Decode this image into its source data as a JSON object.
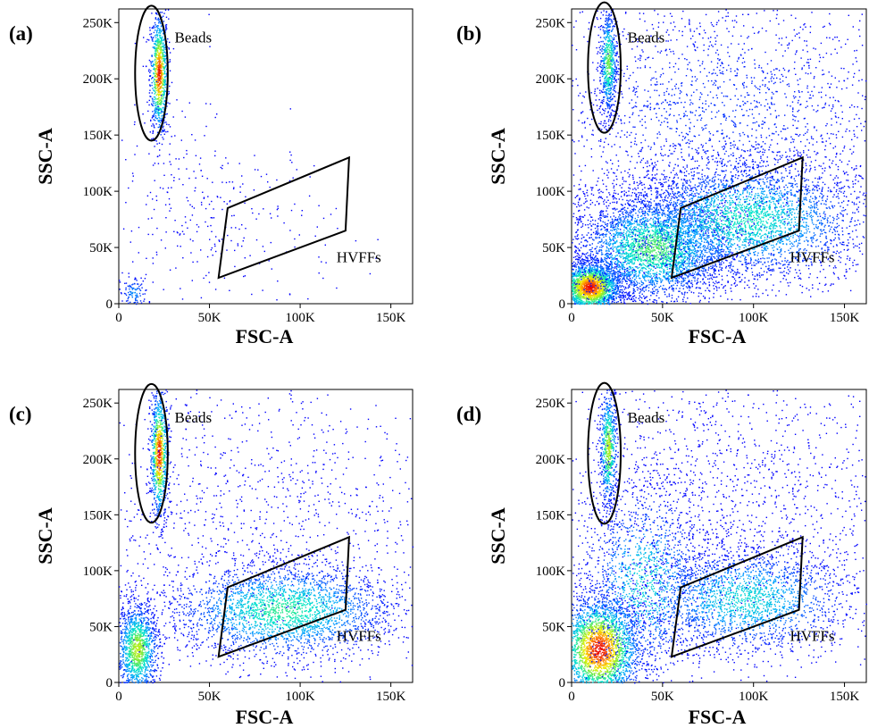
{
  "chart_data": [
    {
      "type": "scatter",
      "panel_label": "(a)",
      "xlabel": "FSC-A",
      "ylabel": "SSC-A",
      "xlim": [
        0,
        162000
      ],
      "ylim": [
        0,
        262144
      ],
      "xticks": [
        {
          "v": 0,
          "label": "0"
        },
        {
          "v": 50000,
          "label": "50K"
        },
        {
          "v": 100000,
          "label": "100K"
        },
        {
          "v": 150000,
          "label": "150K"
        }
      ],
      "yticks": [
        {
          "v": 0,
          "label": "0"
        },
        {
          "v": 50000,
          "label": "50K"
        },
        {
          "v": 100000,
          "label": "100K"
        },
        {
          "v": 150000,
          "label": "150K"
        },
        {
          "v": 200000,
          "label": "200K"
        },
        {
          "v": 250000,
          "label": "250K"
        }
      ],
      "gates": [
        {
          "shape": "ellipse",
          "label": "Beads",
          "center": [
            18000,
            205000
          ],
          "radii": [
            9000,
            60000
          ]
        },
        {
          "shape": "polygon",
          "label": "HVFFs",
          "points": [
            [
              55000,
              23000
            ],
            [
              60000,
              85000
            ],
            [
              127000,
              130000
            ],
            [
              125000,
              65000
            ]
          ]
        }
      ],
      "density": "sparse; debris cluster near origin; dense bead population"
    },
    {
      "type": "scatter",
      "panel_label": "(b)",
      "xlabel": "FSC-A",
      "ylabel": "SSC-A",
      "xlim": [
        0,
        162000
      ],
      "ylim": [
        0,
        262144
      ],
      "xticks": [
        {
          "v": 0,
          "label": "0"
        },
        {
          "v": 50000,
          "label": "50K"
        },
        {
          "v": 100000,
          "label": "100K"
        },
        {
          "v": 150000,
          "label": "150K"
        }
      ],
      "yticks": [
        {
          "v": 0,
          "label": "0"
        },
        {
          "v": 50000,
          "label": "50K"
        },
        {
          "v": 100000,
          "label": "100K"
        },
        {
          "v": 150000,
          "label": "150K"
        },
        {
          "v": 200000,
          "label": "200K"
        },
        {
          "v": 250000,
          "label": "250K"
        }
      ],
      "gates": [
        {
          "shape": "ellipse",
          "label": "Beads",
          "center": [
            18000,
            210000
          ],
          "radii": [
            9000,
            58000
          ]
        },
        {
          "shape": "polygon",
          "label": "HVFFs",
          "points": [
            [
              55000,
              23000
            ],
            [
              60000,
              85000
            ],
            [
              127000,
              130000
            ],
            [
              125000,
              65000
            ]
          ]
        }
      ],
      "density": "very dense; cells spread along diagonal; hotspot near origin"
    },
    {
      "type": "scatter",
      "panel_label": "(c)",
      "xlabel": "FSC-A",
      "ylabel": "SSC-A",
      "xlim": [
        0,
        162000
      ],
      "ylim": [
        0,
        262144
      ],
      "xticks": [
        {
          "v": 0,
          "label": "0"
        },
        {
          "v": 50000,
          "label": "50K"
        },
        {
          "v": 100000,
          "label": "100K"
        },
        {
          "v": 150000,
          "label": "150K"
        }
      ],
      "yticks": [
        {
          "v": 0,
          "label": "0"
        },
        {
          "v": 50000,
          "label": "50K"
        },
        {
          "v": 100000,
          "label": "100K"
        },
        {
          "v": 150000,
          "label": "150K"
        },
        {
          "v": 200000,
          "label": "200K"
        },
        {
          "v": 250000,
          "label": "250K"
        }
      ],
      "gates": [
        {
          "shape": "ellipse",
          "label": "Beads",
          "center": [
            18000,
            205000
          ],
          "radii": [
            9000,
            62000
          ]
        },
        {
          "shape": "polygon",
          "label": "HVFFs",
          "points": [
            [
              55000,
              23000
            ],
            [
              60000,
              85000
            ],
            [
              127000,
              130000
            ],
            [
              125000,
              65000
            ]
          ]
        }
      ],
      "density": "dense cell population inside HVFFs gate; moderate near origin"
    },
    {
      "type": "scatter",
      "panel_label": "(d)",
      "xlabel": "FSC-A",
      "ylabel": "SSC-A",
      "xlim": [
        0,
        162000
      ],
      "ylim": [
        0,
        262144
      ],
      "xticks": [
        {
          "v": 0,
          "label": "0"
        },
        {
          "v": 50000,
          "label": "50K"
        },
        {
          "v": 100000,
          "label": "100K"
        },
        {
          "v": 150000,
          "label": "150K"
        }
      ],
      "yticks": [
        {
          "v": 0,
          "label": "0"
        },
        {
          "v": 50000,
          "label": "50K"
        },
        {
          "v": 100000,
          "label": "100K"
        },
        {
          "v": 150000,
          "label": "150K"
        },
        {
          "v": 200000,
          "label": "200K"
        },
        {
          "v": 250000,
          "label": "250K"
        }
      ],
      "gates": [
        {
          "shape": "ellipse",
          "label": "Beads",
          "center": [
            18000,
            205000
          ],
          "radii": [
            9000,
            63000
          ]
        },
        {
          "shape": "polygon",
          "label": "HVFFs",
          "points": [
            [
              55000,
              23000
            ],
            [
              60000,
              85000
            ],
            [
              127000,
              130000
            ],
            [
              125000,
              65000
            ]
          ]
        }
      ],
      "density": "dense diagonal band from origin; strong hotspot near origin"
    }
  ]
}
